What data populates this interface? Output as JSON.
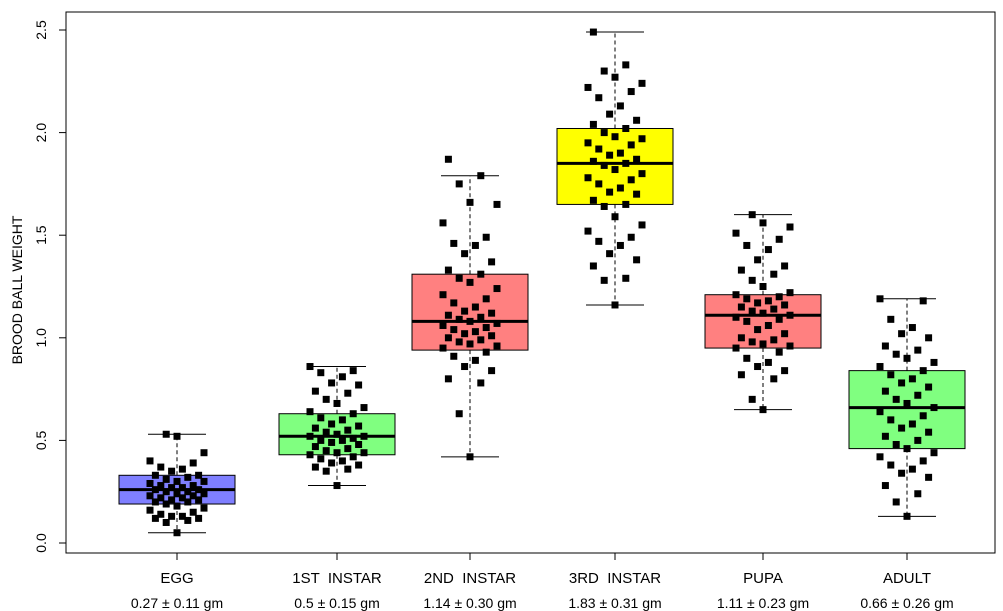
{
  "chart_data": {
    "type": "box",
    "ylabel": "BROOD BALL WEIGHT",
    "ylim": [
      0,
      2.5
    ],
    "yticks": [
      "0.0",
      "0.5",
      "1.0",
      "1.5",
      "2.0",
      "2.5"
    ],
    "grid": false,
    "categories": [
      "EGG",
      "1ST  INSTAR",
      "2ND  INSTAR",
      "3RD  INSTAR",
      "PUPA",
      "ADULT"
    ],
    "summaries": [
      "0.27 ± 0.11 gm",
      "0.5 ± 0.15 gm",
      "1.14 ± 0.30 gm",
      "1.83 ± 0.31 gm",
      "1.11 ± 0.23 gm",
      "0.66 ± 0.26 gm"
    ],
    "boxes": [
      {
        "category": "EGG",
        "color": "#7f7fff",
        "whisker_low": 0.05,
        "q1": 0.19,
        "median": 0.26,
        "q3": 0.33,
        "whisker_high": 0.53,
        "points": [
          0.05,
          0.1,
          0.11,
          0.12,
          0.12,
          0.13,
          0.13,
          0.14,
          0.15,
          0.16,
          0.17,
          0.18,
          0.19,
          0.2,
          0.2,
          0.21,
          0.21,
          0.22,
          0.22,
          0.23,
          0.23,
          0.24,
          0.24,
          0.25,
          0.25,
          0.26,
          0.26,
          0.27,
          0.27,
          0.28,
          0.28,
          0.29,
          0.3,
          0.3,
          0.31,
          0.32,
          0.33,
          0.33,
          0.35,
          0.36,
          0.37,
          0.39,
          0.4,
          0.44,
          0.52,
          0.53
        ]
      },
      {
        "category": "1ST  INSTAR",
        "color": "#80ff80",
        "whisker_low": 0.28,
        "q1": 0.43,
        "median": 0.52,
        "q3": 0.63,
        "whisker_high": 0.86,
        "points": [
          0.28,
          0.35,
          0.36,
          0.37,
          0.38,
          0.39,
          0.4,
          0.41,
          0.42,
          0.43,
          0.44,
          0.44,
          0.45,
          0.46,
          0.47,
          0.48,
          0.49,
          0.5,
          0.5,
          0.51,
          0.52,
          0.52,
          0.53,
          0.54,
          0.55,
          0.56,
          0.57,
          0.58,
          0.6,
          0.61,
          0.63,
          0.64,
          0.66,
          0.68,
          0.7,
          0.73,
          0.74,
          0.77,
          0.78,
          0.81,
          0.83,
          0.84,
          0.86
        ]
      },
      {
        "category": "2ND  INSTAR",
        "color": "#ff8080",
        "whisker_low": 0.42,
        "q1": 0.94,
        "median": 1.08,
        "q3": 1.31,
        "whisker_high": 1.79,
        "points": [
          0.42,
          0.63,
          0.78,
          0.8,
          0.84,
          0.86,
          0.89,
          0.91,
          0.93,
          0.95,
          0.96,
          0.97,
          0.98,
          0.99,
          1.0,
          1.01,
          1.02,
          1.03,
          1.04,
          1.05,
          1.06,
          1.07,
          1.08,
          1.09,
          1.1,
          1.11,
          1.12,
          1.13,
          1.15,
          1.17,
          1.19,
          1.21,
          1.24,
          1.27,
          1.29,
          1.31,
          1.33,
          1.37,
          1.41,
          1.45,
          1.46,
          1.49,
          1.56,
          1.65,
          1.66,
          1.75,
          1.79,
          1.87
        ]
      },
      {
        "category": "3RD  INSTAR",
        "color": "#ffff00",
        "whisker_low": 1.16,
        "q1": 1.65,
        "median": 1.85,
        "q3": 2.02,
        "whisker_high": 2.49,
        "points": [
          1.16,
          1.28,
          1.29,
          1.35,
          1.38,
          1.41,
          1.45,
          1.47,
          1.49,
          1.52,
          1.55,
          1.59,
          1.64,
          1.65,
          1.67,
          1.7,
          1.71,
          1.73,
          1.75,
          1.77,
          1.78,
          1.8,
          1.82,
          1.84,
          1.85,
          1.86,
          1.87,
          1.89,
          1.9,
          1.92,
          1.94,
          1.95,
          1.97,
          1.98,
          2.0,
          2.02,
          2.04,
          2.06,
          2.09,
          2.13,
          2.17,
          2.2,
          2.22,
          2.24,
          2.27,
          2.3,
          2.33,
          2.49
        ]
      },
      {
        "category": "PUPA",
        "color": "#ff8080",
        "whisker_low": 0.65,
        "q1": 0.95,
        "median": 1.11,
        "q3": 1.21,
        "whisker_high": 1.6,
        "points": [
          0.65,
          0.7,
          0.8,
          0.82,
          0.84,
          0.86,
          0.88,
          0.9,
          0.93,
          0.95,
          0.96,
          0.97,
          0.98,
          0.99,
          1.0,
          1.02,
          1.04,
          1.06,
          1.08,
          1.09,
          1.1,
          1.11,
          1.12,
          1.13,
          1.14,
          1.15,
          1.16,
          1.17,
          1.18,
          1.19,
          1.2,
          1.21,
          1.22,
          1.25,
          1.28,
          1.31,
          1.33,
          1.35,
          1.38,
          1.43,
          1.45,
          1.48,
          1.51,
          1.54,
          1.56,
          1.6
        ]
      },
      {
        "category": "ADULT",
        "color": "#80ff80",
        "whisker_low": 0.13,
        "q1": 0.46,
        "median": 0.66,
        "q3": 0.84,
        "whisker_high": 1.19,
        "points": [
          0.13,
          0.2,
          0.24,
          0.28,
          0.32,
          0.34,
          0.36,
          0.38,
          0.4,
          0.42,
          0.44,
          0.46,
          0.48,
          0.5,
          0.52,
          0.54,
          0.56,
          0.58,
          0.6,
          0.62,
          0.64,
          0.66,
          0.68,
          0.7,
          0.72,
          0.74,
          0.76,
          0.78,
          0.8,
          0.82,
          0.84,
          0.86,
          0.88,
          0.9,
          0.92,
          0.94,
          0.96,
          1.0,
          1.02,
          1.05,
          1.09,
          1.18,
          1.19
        ]
      }
    ]
  }
}
